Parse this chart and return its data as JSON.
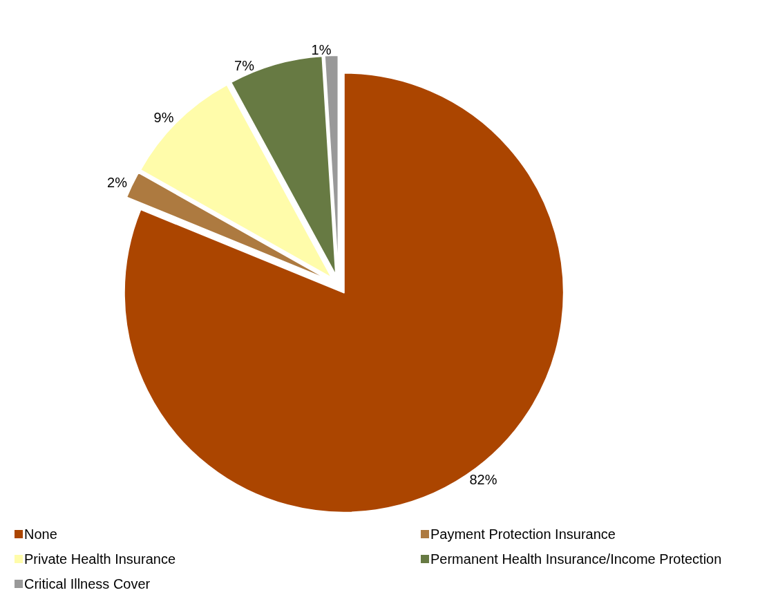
{
  "chart_data": {
    "type": "pie",
    "categories": [
      "None",
      "Payment Protection Insurance",
      "Private Health Insurance",
      "Permanent Health Insurance/Income Protection",
      "Critical Illness Cover"
    ],
    "values": [
      82,
      2,
      9,
      7,
      1
    ],
    "colors": [
      "#ab4500",
      "#ad7a40",
      "#fffcaa",
      "#677a43",
      "#999999"
    ],
    "value_labels": [
      "82%",
      "2%",
      "9%",
      "7%",
      "1%"
    ],
    "legend": "bottom"
  }
}
